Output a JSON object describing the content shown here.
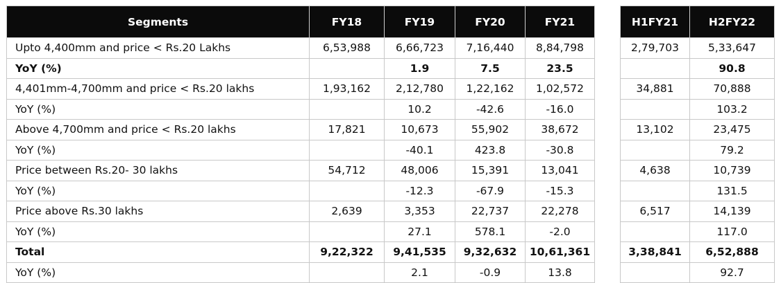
{
  "headers": {
    "segments": "Segments",
    "fy18": "FY18",
    "fy19": "FY19",
    "fy20": "FY20",
    "fy21": "FY21",
    "h1fy21": "H1FY21",
    "h2fy22": "H2FY22"
  },
  "rows": [
    {
      "label": "Upto 4,400mm and price < Rs.20 Lakhs",
      "fy18": "6,53,988",
      "fy19": "6,66,723",
      "fy20": "7,16,440",
      "fy21": "8,84,798",
      "h1fy21": "2,79,703",
      "h2fy22": "5,33,647",
      "bold": false
    },
    {
      "label": "YoY (%)",
      "fy18": "",
      "fy19": "1.9",
      "fy20": "7.5",
      "fy21": "23.5",
      "h1fy21": "",
      "h2fy22": "90.8",
      "bold": true
    },
    {
      "label": "4,401mm-4,700mm and  price < Rs.20 lakhs",
      "fy18": "1,93,162",
      "fy19": "2,12,780",
      "fy20": "1,22,162",
      "fy21": "1,02,572",
      "h1fy21": "34,881",
      "h2fy22": "70,888",
      "bold": false
    },
    {
      "label": "YoY (%)",
      "fy18": "",
      "fy19": "10.2",
      "fy20": "-42.6",
      "fy21": "-16.0",
      "h1fy21": "",
      "h2fy22": "103.2",
      "bold": false
    },
    {
      "label": "Above 4,700mm and  price < Rs.20 lakhs",
      "fy18": "17,821",
      "fy19": "10,673",
      "fy20": "55,902",
      "fy21": "38,672",
      "h1fy21": "13,102",
      "h2fy22": "23,475",
      "bold": false
    },
    {
      "label": "YoY (%)",
      "fy18": "",
      "fy19": "-40.1",
      "fy20": "423.8",
      "fy21": "-30.8",
      "h1fy21": "",
      "h2fy22": "79.2",
      "bold": false
    },
    {
      "label": "Price between Rs.20- 30 lakhs",
      "fy18": "54,712",
      "fy19": "48,006",
      "fy20": "15,391",
      "fy21": "13,041",
      "h1fy21": "4,638",
      "h2fy22": "10,739",
      "bold": false
    },
    {
      "label": "YoY (%)",
      "fy18": "",
      "fy19": "-12.3",
      "fy20": "-67.9",
      "fy21": "-15.3",
      "h1fy21": "",
      "h2fy22": "131.5",
      "bold": false
    },
    {
      "label": "Price above Rs.30  lakhs",
      "fy18": "2,639",
      "fy19": "3,353",
      "fy20": "22,737",
      "fy21": "22,278",
      "h1fy21": "6,517",
      "h2fy22": "14,139",
      "bold": false
    },
    {
      "label": "YoY (%)",
      "fy18": "",
      "fy19": "27.1",
      "fy20": "578.1",
      "fy21": "-2.0",
      "h1fy21": "",
      "h2fy22": "117.0",
      "bold": false
    },
    {
      "label": "Total",
      "fy18": "9,22,322",
      "fy19": "9,41,535",
      "fy20": "9,32,632",
      "fy21": "10,61,361",
      "h1fy21": "3,38,841",
      "h2fy22": "6,52,888",
      "bold": true
    },
    {
      "label": "YoY (%)",
      "fy18": "",
      "fy19": "2.1",
      "fy20": "-0.9",
      "fy21": "13.8",
      "h1fy21": "",
      "h2fy22": "92.7",
      "bold": false
    }
  ]
}
